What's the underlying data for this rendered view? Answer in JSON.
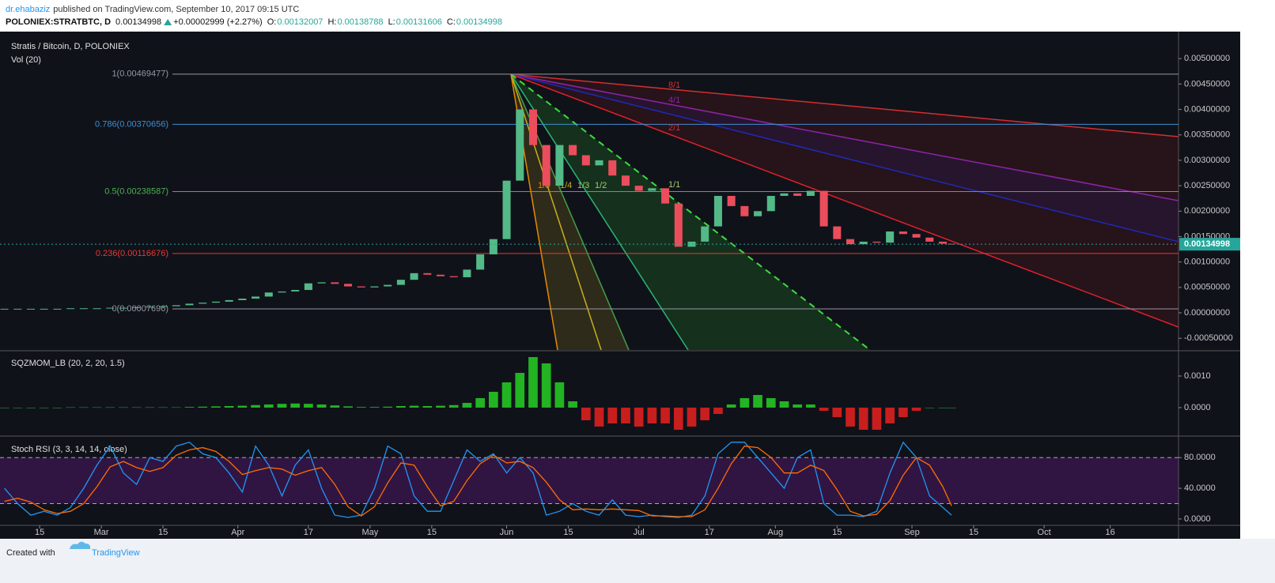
{
  "header": {
    "author": "dr.ehabaziz",
    "published": "published on TradingView.com, September 10, 2017 09:15 UTC",
    "symbol": "POLONIEX:STRATBTC, D",
    "price": 0.00134998,
    "change": "+0.00002999 (+2.27%)",
    "ohlc": [
      {
        "label": "O:",
        "value": 0.00132007
      },
      {
        "label": "H:",
        "value": 0.00138788
      },
      {
        "label": "L:",
        "value": 0.00131606
      },
      {
        "label": "C:",
        "value": 0.00134998
      }
    ]
  },
  "footer": {
    "created": "Created with",
    "brand": "TradingView"
  },
  "chart_data": [
    {
      "type": "candlestick",
      "title": "Stratis / Bitcoin, D, POLONIEX",
      "subtitle": "Vol (20)",
      "x": [
        6,
        9,
        12,
        15,
        18,
        21,
        24,
        27,
        30,
        33,
        36,
        39,
        42,
        45,
        48,
        51,
        54,
        57,
        60,
        63,
        66,
        69,
        72,
        75,
        78,
        81,
        84,
        87,
        90,
        93,
        96,
        99,
        102,
        105,
        108,
        111,
        114,
        117,
        120,
        123,
        126,
        129,
        132,
        135,
        138,
        141,
        144,
        147,
        150,
        153,
        156,
        159,
        162,
        165,
        168,
        171,
        174,
        177,
        180,
        183,
        186,
        189,
        192,
        195,
        198,
        201,
        204,
        207,
        210,
        213,
        216,
        219,
        221
      ],
      "close": [
        8e-05,
        8e-05,
        8e-05,
        8e-05,
        8e-05,
        9e-05,
        9e-05,
        9e-05,
        0.0001,
        0.0001,
        0.00011,
        0.00012,
        0.00013,
        0.00015,
        0.00018,
        0.0002,
        0.00022,
        0.00025,
        0.00028,
        0.00032,
        0.0004,
        0.00042,
        0.00045,
        0.00058,
        0.0006,
        0.00057,
        0.00052,
        0.0005,
        0.00052,
        0.00055,
        0.00065,
        0.00078,
        0.00075,
        0.00072,
        0.0007,
        0.00085,
        0.00115,
        0.00145,
        0.0026,
        0.004,
        0.0033,
        0.0025,
        0.0033,
        0.0031,
        0.0029,
        0.003,
        0.0027,
        0.0025,
        0.0024,
        0.00245,
        0.00215,
        0.0013,
        0.0014,
        0.0017,
        0.0023,
        0.0021,
        0.0019,
        0.002,
        0.0023,
        0.00235,
        0.0023,
        0.0024,
        0.0017,
        0.00145,
        0.00135,
        0.0014,
        0.00138,
        0.0016,
        0.00155,
        0.00148,
        0.0014,
        0.00136,
        0.00134998
      ],
      "up_color": "#53b987",
      "down_color": "#eb4d5c",
      "xlim": [
        5,
        272.5
      ],
      "xticks": [
        {
          "value": 14,
          "label": "15"
        },
        {
          "value": 28,
          "label": "Mar"
        },
        {
          "value": 42,
          "label": "15"
        },
        {
          "value": 59,
          "label": "Apr"
        },
        {
          "value": 75,
          "label": "17"
        },
        {
          "value": 89,
          "label": "May"
        },
        {
          "value": 103,
          "label": "15"
        },
        {
          "value": 120,
          "label": "Jun"
        },
        {
          "value": 134,
          "label": "15"
        },
        {
          "value": 150,
          "label": "Jul"
        },
        {
          "value": 166,
          "label": "17"
        },
        {
          "value": 181,
          "label": "Aug"
        },
        {
          "value": 195,
          "label": "15"
        },
        {
          "value": 212,
          "label": "Sep"
        },
        {
          "value": 226,
          "label": "15"
        },
        {
          "value": 242,
          "label": "Oct"
        },
        {
          "value": 257,
          "label": "16"
        }
      ],
      "ylim": [
        -0.00073,
        0.0055
      ],
      "yticks": [
        {
          "value": -0.0005,
          "label": "-0.00050000"
        },
        {
          "value": 0,
          "label": "0.00000000"
        },
        {
          "value": 0.0005,
          "label": "0.00050000"
        },
        {
          "value": 0.001,
          "label": "0.00100000"
        },
        {
          "value": 0.0015,
          "label": "0.00150000"
        },
        {
          "value": 0.002,
          "label": "0.00200000"
        },
        {
          "value": 0.0025,
          "label": "0.00250000"
        },
        {
          "value": 0.003,
          "label": "0.00300000"
        },
        {
          "value": 0.0035,
          "label": "0.00350000"
        },
        {
          "value": 0.004,
          "label": "0.00400000"
        },
        {
          "value": 0.0045,
          "label": "0.00450000"
        },
        {
          "value": 0.005,
          "label": "0.00500000"
        }
      ],
      "last_price": {
        "value": 0.00134998,
        "label": "0.00134998"
      },
      "last_color": "#26a69a",
      "fib_levels": [
        {
          "value": 0.00469477,
          "label": "1(0.00469477)",
          "color": "#9598a1"
        },
        {
          "value": 0.00370656,
          "label": "0.786(0.00370656)",
          "color": "#3d8fd1"
        },
        {
          "value": 0.00238587,
          "label": "0.5(0.00238587)",
          "color": "#4caf50"
        },
        {
          "value": 0.00116676,
          "label": "0.236(0.00116676)",
          "color": "#e53935"
        },
        {
          "value": 7.696e-05,
          "label": "0(0.00007696)",
          "color": "#9598a1"
        }
      ],
      "fan_labels": [
        "8/1",
        "4/1",
        "2/1",
        "1/1",
        "1/2",
        "1/3",
        "1/4",
        "1/8"
      ]
    },
    {
      "type": "bar",
      "title": "SQZMOM_LB (20, 2, 20, 1.5)",
      "values": [
        0,
        0,
        0,
        0,
        0,
        1e-05,
        1e-05,
        1e-05,
        1e-05,
        1e-05,
        1e-05,
        1e-05,
        1e-05,
        1e-05,
        2e-05,
        3e-05,
        4e-05,
        5e-05,
        6e-05,
        8e-05,
        0.0001,
        0.00012,
        0.00013,
        0.00012,
        0.0001,
        7e-05,
        4e-05,
        2e-05,
        2e-05,
        3e-05,
        5e-05,
        6e-05,
        5e-05,
        6e-05,
        8e-05,
        0.00015,
        0.0003,
        0.0005,
        0.0008,
        0.0011,
        0.0016,
        0.0014,
        0.0008,
        0.0002,
        -0.0004,
        -0.0006,
        -0.0005,
        -0.0005,
        -0.0006,
        -0.0005,
        -0.0005,
        -0.0007,
        -0.0006,
        -0.0004,
        -0.0002,
        0.0001,
        0.0003,
        0.0004,
        0.0003,
        0.0002,
        0.0001,
        0.0001,
        -0.0001,
        -0.0003,
        -0.0006,
        -0.0007,
        -0.0007,
        -0.0005,
        -0.0003,
        -0.0001,
        0,
        0,
        0
      ],
      "up_color": "#22b422",
      "down_color": "#c81e1e",
      "ylim": [
        -0.00085,
        0.001775
      ],
      "yticks": [
        {
          "value": 0.001,
          "label": "0.0010"
        },
        {
          "value": 0,
          "label": "0.0000"
        }
      ]
    },
    {
      "type": "line",
      "title": "Stoch RSI (3, 3, 14, 14, close)",
      "series": [
        {
          "color": "#2196f3",
          "values": [
            40,
            20,
            5,
            10,
            5,
            15,
            40,
            70,
            95,
            60,
            45,
            80,
            75,
            95,
            100,
            85,
            80,
            60,
            35,
            95,
            70,
            30,
            70,
            90,
            40,
            5,
            2,
            5,
            40,
            95,
            85,
            30,
            10,
            10,
            50,
            90,
            75,
            85,
            60,
            80,
            60,
            5,
            10,
            20,
            10,
            5,
            25,
            5,
            3,
            5,
            3,
            2,
            5,
            30,
            85,
            100,
            100,
            80,
            60,
            40,
            80,
            90,
            20,
            5,
            5,
            3,
            10,
            60,
            100,
            80,
            30,
            15,
            5
          ]
        },
        {
          "color": "#ff6d00",
          "values": [
            23,
            27,
            22,
            12,
            7,
            10,
            20,
            42,
            68,
            75,
            67,
            62,
            67,
            83,
            90,
            93,
            88,
            75,
            58,
            63,
            67,
            65,
            57,
            63,
            67,
            45,
            16,
            4,
            16,
            47,
            73,
            70,
            42,
            17,
            23,
            50,
            72,
            83,
            73,
            75,
            67,
            48,
            25,
            12,
            13,
            12,
            13,
            12,
            11,
            4,
            4,
            3,
            3,
            12,
            40,
            72,
            95,
            93,
            80,
            60,
            60,
            70,
            63,
            38,
            10,
            4,
            6,
            24,
            57,
            80,
            70,
            42,
            17
          ]
        }
      ],
      "ylim": [
        -8.3,
        107
      ],
      "yticks": [
        {
          "value": 80,
          "label": "80.0000"
        },
        {
          "value": 40,
          "label": "40.0000"
        },
        {
          "value": 0,
          "label": "0.0000"
        }
      ],
      "bands": [
        20,
        80
      ],
      "band_color": "#7b1fa2"
    }
  ]
}
